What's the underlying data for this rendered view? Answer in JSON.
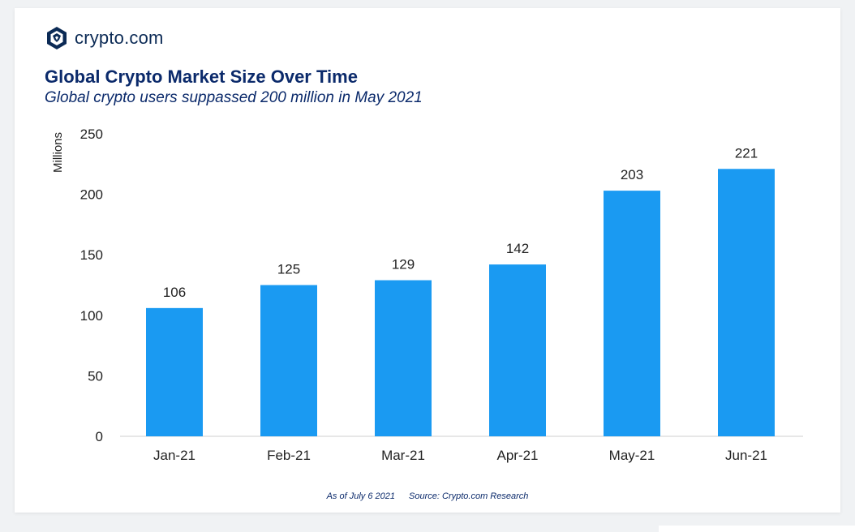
{
  "brand": {
    "name": "crypto.com"
  },
  "colors": {
    "bar": "#1a9af2",
    "title": "#0b2a6b",
    "axis": "#222222"
  },
  "footnote": {
    "as_of": "As of July 6 2021",
    "source": "Source: Crypto.com Research"
  },
  "chart_data": {
    "type": "bar",
    "title": "Global Crypto Market Size Over Time",
    "subtitle": "Global crypto users suppassed 200 million in May 2021",
    "ylabel": "Millions",
    "xlabel": "",
    "categories": [
      "Jan-21",
      "Feb-21",
      "Mar-21",
      "Apr-21",
      "May-21",
      "Jun-21"
    ],
    "values": [
      106,
      125,
      129,
      142,
      203,
      221
    ],
    "value_labels": [
      "106",
      "125",
      "129",
      "142",
      "203",
      "221"
    ],
    "ylim": [
      0,
      250
    ],
    "yticks": [
      0,
      50,
      100,
      150,
      200,
      250
    ],
    "grid": false,
    "legend": "none"
  }
}
